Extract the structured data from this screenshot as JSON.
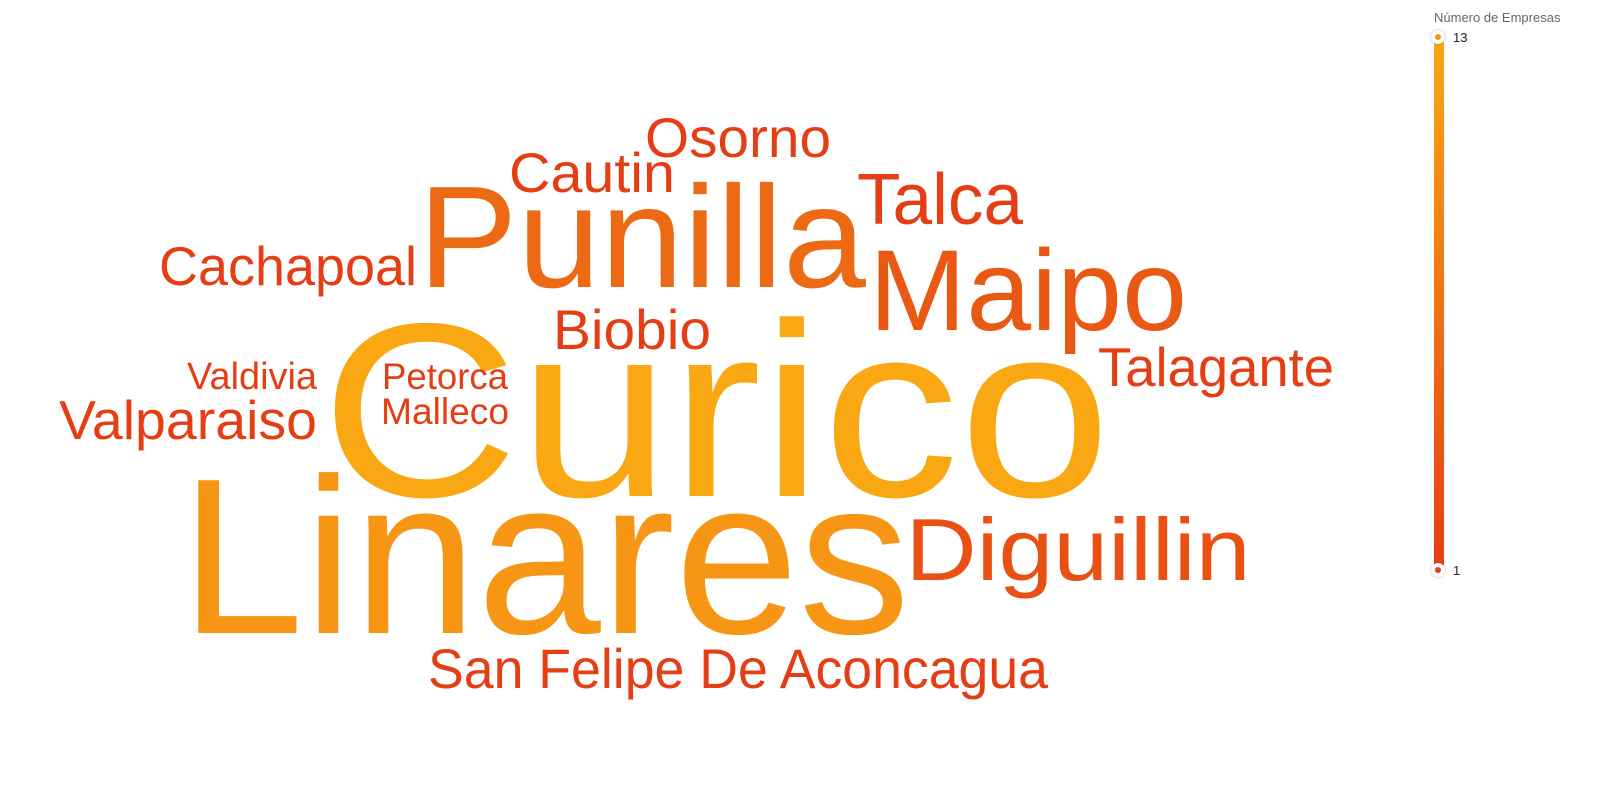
{
  "chart_data": {
    "type": "wordcloud",
    "measure": "Número de Empresas",
    "color_scale": {
      "min": 1,
      "max": 13,
      "min_color": "#e53e14",
      "max_color": "#f9a814"
    },
    "words": [
      {
        "text": "Curico",
        "value": 13
      },
      {
        "text": "Linares",
        "value": 11
      },
      {
        "text": "Punilla",
        "value": 6
      },
      {
        "text": "Maipo",
        "value": 4
      },
      {
        "text": "Diguillin",
        "value": 3
      },
      {
        "text": "Osorno",
        "value": 1
      },
      {
        "text": "Cautin",
        "value": 1
      },
      {
        "text": "Talca",
        "value": 1
      },
      {
        "text": "Cachapoal",
        "value": 1
      },
      {
        "text": "Biobio",
        "value": 1
      },
      {
        "text": "Talagante",
        "value": 1
      },
      {
        "text": "Valdivia",
        "value": 1
      },
      {
        "text": "Petorca",
        "value": 1
      },
      {
        "text": "Malleco",
        "value": 1
      },
      {
        "text": "Valparaiso",
        "value": 1
      },
      {
        "text": "San Felipe De Aconcagua",
        "value": 1
      }
    ]
  },
  "legend": {
    "title": "Número de Empresas",
    "max_label": "13",
    "min_label": "1"
  }
}
